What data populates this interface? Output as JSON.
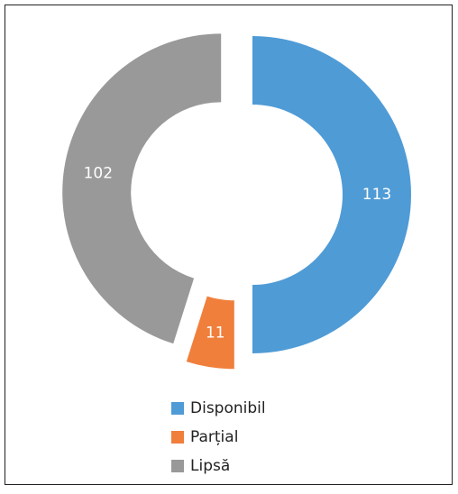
{
  "chart_data": {
    "type": "donut",
    "categories": [
      "Disponibil",
      "Parțial",
      "Lipsă"
    ],
    "values": [
      113,
      11,
      102
    ],
    "colors": [
      "#4f9bd6",
      "#f07f3c",
      "#999999"
    ],
    "legend": "bottom"
  }
}
